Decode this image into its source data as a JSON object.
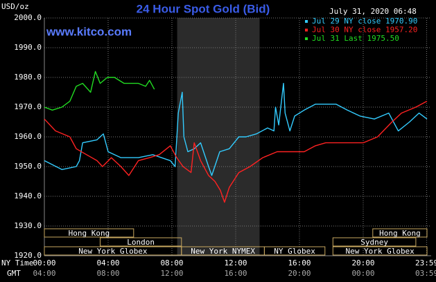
{
  "chart_data": {
    "type": "line",
    "title": "24 Hour Spot Gold (Bid)",
    "y_axis_label": "USD/oz",
    "timestamp": "July 31, 2020 06:48",
    "website": "www.kitco.com",
    "x_axis_label": "NY Time",
    "x2_axis_label": "GMT",
    "xlim": [
      0,
      24
    ],
    "ylim": [
      1920,
      2000
    ],
    "yticks": [
      {
        "value": 1920,
        "label": "1920.0"
      },
      {
        "value": 1930,
        "label": "1930.0"
      },
      {
        "value": 1940,
        "label": "1940.0"
      },
      {
        "value": 1950,
        "label": "1950.0"
      },
      {
        "value": 1960,
        "label": "1960.0"
      },
      {
        "value": 1970,
        "label": "1970.0"
      },
      {
        "value": 1980,
        "label": "1980.0"
      },
      {
        "value": 1990,
        "label": "1990.0"
      },
      {
        "value": 2000,
        "label": "2000.0"
      }
    ],
    "xticks": [
      {
        "value": 0,
        "label": "00:00"
      },
      {
        "value": 4,
        "label": "04:00"
      },
      {
        "value": 8,
        "label": "08:00"
      },
      {
        "value": 12,
        "label": "12:00"
      },
      {
        "value": 16,
        "label": "16:00"
      },
      {
        "value": 20,
        "label": "20:00"
      },
      {
        "value": 23.98,
        "label": "23:59"
      }
    ],
    "xticks_gmt": [
      {
        "value": 0,
        "label": "04:00"
      },
      {
        "value": 4,
        "label": "08:00"
      },
      {
        "value": 8,
        "label": "12:00"
      },
      {
        "value": 12,
        "label": "16:00"
      },
      {
        "value": 16,
        "label": "20:00"
      },
      {
        "value": 20,
        "label": "00:00"
      },
      {
        "value": 23.98,
        "label": "03:59"
      }
    ],
    "grid": true,
    "legend": "top-right",
    "shaded_region": [
      8.33,
      13.5
    ],
    "session_rows": [
      [
        {
          "label": "Hong Kong",
          "start": 0,
          "end": 5.6
        },
        {
          "label": "Hong Kong",
          "start": 20.6,
          "end": 24
        }
      ],
      [
        {
          "label": "London",
          "start": 3.5,
          "end": 8.6
        },
        {
          "label": "Sydney",
          "start": 18.1,
          "end": 23.3
        }
      ],
      [
        {
          "label": "New York Globex",
          "start": 0,
          "end": 8.6
        },
        {
          "label": "New York NYMEX",
          "start": 8.6,
          "end": 13.8
        },
        {
          "label": "NY Globex",
          "start": 13.8,
          "end": 17.6
        },
        {
          "label": "New York Globex",
          "start": 18.1,
          "end": 24
        }
      ]
    ],
    "series": [
      {
        "name": "Jul 29 NY close 1970.90",
        "color": "#33ccff",
        "x": [
          0,
          1.1,
          2.0,
          2.2,
          2.4,
          3.3,
          3.7,
          4.0,
          4.8,
          5.9,
          6.8,
          7.9,
          8.2,
          8.4,
          8.65,
          8.75,
          9.0,
          9.4,
          9.8,
          10.3,
          10.5,
          11.0,
          11.6,
          12.2,
          12.65,
          13.3,
          14.0,
          14.4,
          14.5,
          14.7,
          15.0,
          15.1,
          15.4,
          15.7,
          16.3,
          17.0,
          18.3,
          19.0,
          19.8,
          20.7,
          21.6,
          22.2,
          22.9,
          23.5,
          24.0
        ],
        "values": [
          1952,
          1949,
          1950,
          1952,
          1958,
          1959,
          1961,
          1955,
          1953,
          1953,
          1954,
          1952,
          1950,
          1968,
          1975,
          1960,
          1955,
          1956,
          1958,
          1950,
          1947,
          1955,
          1956,
          1960,
          1960,
          1961,
          1963,
          1962,
          1970,
          1964,
          1978,
          1968,
          1962,
          1967,
          1969,
          1971,
          1971,
          1969,
          1967,
          1966,
          1968,
          1962,
          1965,
          1968,
          1966
        ]
      },
      {
        "name": "Jul 30 NY close 1957.20",
        "color": "#ff2222",
        "x": [
          0,
          0.7,
          1.6,
          2.0,
          2.65,
          3.3,
          3.65,
          4.2,
          4.8,
          5.3,
          5.9,
          6.6,
          7.2,
          7.9,
          8.3,
          8.7,
          9.2,
          9.4,
          9.8,
          10.3,
          10.7,
          11.04,
          11.3,
          11.6,
          12.2,
          12.9,
          13.7,
          14.6,
          15.5,
          16.3,
          17.0,
          17.65,
          19.0,
          20.0,
          20.9,
          21.8,
          22.4,
          23.3,
          24.0
        ],
        "values": [
          1966,
          1962,
          1960,
          1956,
          1954,
          1952,
          1950,
          1953,
          1950,
          1947,
          1952,
          1953,
          1954,
          1957,
          1953,
          1950,
          1948,
          1958,
          1952,
          1947,
          1945,
          1942,
          1938,
          1943,
          1948,
          1950,
          1953,
          1955,
          1955,
          1955,
          1957,
          1958,
          1958,
          1958,
          1960,
          1965,
          1968,
          1970,
          1972
        ]
      },
      {
        "name": "Jul 31 Last 1975.50",
        "color": "#22dd22",
        "x": [
          0,
          0.5,
          1.1,
          1.6,
          2.0,
          2.4,
          2.9,
          3.2,
          3.5,
          3.95,
          4.4,
          5.0,
          5.5,
          5.9,
          6.35,
          6.6,
          6.9
        ],
        "values": [
          1970,
          1969,
          1970,
          1972,
          1977,
          1978,
          1975,
          1982,
          1978,
          1980,
          1980,
          1978,
          1978,
          1978,
          1977,
          1979,
          1976
        ]
      }
    ]
  }
}
